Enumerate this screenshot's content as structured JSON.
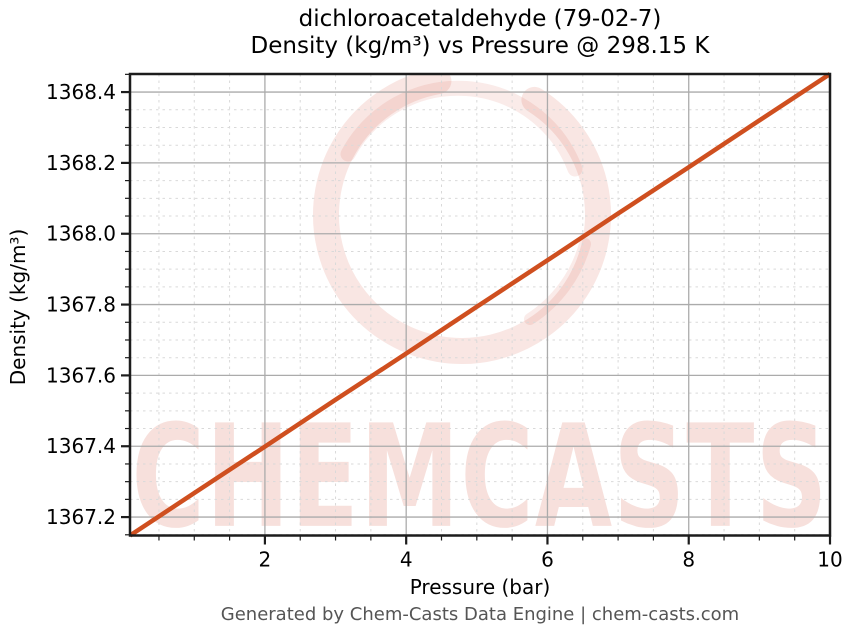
{
  "title": {
    "line1": "dichloroacetaldehyde (79-02-7)",
    "line2": "Density (kg/m³) vs Pressure @ 298.15 K"
  },
  "footer": "Generated by Chem-Casts Data Engine | chem-casts.com",
  "watermark": {
    "text": "CHEMCASTS",
    "color": "#d03e26"
  },
  "chart_data": {
    "type": "line",
    "title": "dichloroacetaldehyde (79-02-7)\nDensity (kg/m³) vs Pressure @ 298.15 K",
    "xlabel": "Pressure (bar)",
    "ylabel": "Density (kg/m³)",
    "xlim": [
      0.09,
      10
    ],
    "ylim": [
      1367.148,
      1368.451
    ],
    "x_major_ticks": [
      2,
      4,
      6,
      8,
      10
    ],
    "x_minor_step": 0.5,
    "y_major_ticks": [
      1367.2,
      1367.4,
      1367.6,
      1367.8,
      1368.0,
      1368.2,
      1368.4
    ],
    "y_minor_step": 0.05,
    "grid": {
      "major": "solid",
      "minor": "dashed",
      "major_color": "#ababab",
      "minor_color": "#d9d9d9"
    },
    "line_color": "#cf4f1f",
    "line_width": 4.5,
    "legend": null,
    "series": [
      {
        "name": "Density vs Pressure @ 298.15 K",
        "x": [
          0.09,
          1,
          2,
          3,
          4,
          5,
          6,
          7,
          8,
          9,
          10
        ],
        "y": [
          1367.148,
          1367.268,
          1367.399,
          1367.531,
          1367.662,
          1367.794,
          1367.925,
          1368.057,
          1368.188,
          1368.32,
          1368.451
        ]
      }
    ]
  }
}
